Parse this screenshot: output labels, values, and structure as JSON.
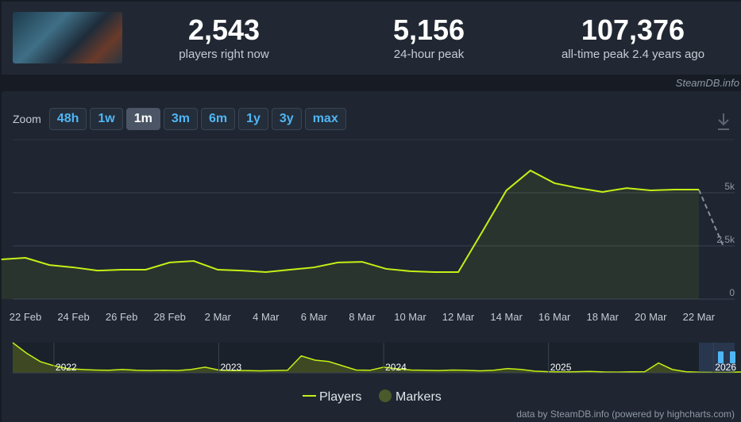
{
  "header": {
    "stats": [
      {
        "value": "2,543",
        "label": "players right now"
      },
      {
        "value": "5,156",
        "label": "24-hour peak"
      },
      {
        "value": "107,376",
        "label": "all-time peak 2.4 years ago"
      }
    ],
    "source": "SteamDB.info"
  },
  "zoom": {
    "label": "Zoom",
    "buttons": [
      "48h",
      "1w",
      "1m",
      "3m",
      "6m",
      "1y",
      "3y",
      "max"
    ],
    "active": 2
  },
  "chart_data": {
    "type": "line",
    "x": [
      null,
      "22 Feb",
      null,
      "24 Feb",
      null,
      "26 Feb",
      null,
      "28 Feb",
      null,
      "2 Mar",
      null,
      "4 Mar",
      null,
      "6 Mar",
      null,
      "8 Mar",
      null,
      "10 Mar",
      null,
      "12 Mar",
      null,
      "14 Mar",
      null,
      "16 Mar",
      null,
      "18 Mar",
      null,
      "20 Mar",
      null,
      "22 Mar",
      null
    ],
    "series": [
      {
        "name": "Players",
        "color": "#c5f015",
        "values": [
          1866,
          1940,
          1600,
          1490,
          1340,
          1380,
          1380,
          1720,
          1790,
          1380,
          1340,
          1270,
          1380,
          1490,
          1720,
          1750,
          1420,
          1310,
          1270,
          1270,
          3170,
          5110,
          6045,
          5450,
          5220,
          5040,
          5220,
          5110,
          5150,
          5150,
          null
        ]
      }
    ],
    "projection": {
      "color": "#8a8f98",
      "dashed": true,
      "values": [
        null,
        null,
        null,
        null,
        null,
        null,
        null,
        null,
        null,
        null,
        null,
        null,
        null,
        null,
        null,
        null,
        null,
        null,
        null,
        null,
        null,
        null,
        null,
        null,
        null,
        null,
        null,
        null,
        null,
        5150,
        2543
      ]
    },
    "markers": {
      "name": "Markers",
      "color": "#4a5a2a"
    },
    "ylim": [
      0,
      7500
    ],
    "yticks": [
      0,
      {
        "value": 2500,
        "label": "2.5k"
      },
      {
        "value": 5000,
        "label": "5k"
      }
    ],
    "grid": true,
    "navigator": {
      "years": [
        "2022",
        "2023",
        "2024",
        "2025",
        "2026"
      ],
      "values": [
        107000,
        70000,
        40000,
        25000,
        15000,
        12000,
        10000,
        9000,
        12000,
        9000,
        8000,
        9000,
        8000,
        12000,
        20000,
        10000,
        8000,
        8000,
        7000,
        8000,
        9000,
        60000,
        45000,
        40000,
        25000,
        10000,
        9000,
        20000,
        14000,
        10000,
        9000,
        8000,
        10000,
        9000,
        7000,
        9000,
        15000,
        12000,
        6000,
        4000,
        3000,
        4000,
        5000,
        3000,
        2500,
        3500,
        4000,
        35000,
        12000,
        4000,
        2000,
        1500,
        1500,
        3000
      ]
    },
    "credit": "data by SteamDB.info (powered by highcharts.com)"
  }
}
